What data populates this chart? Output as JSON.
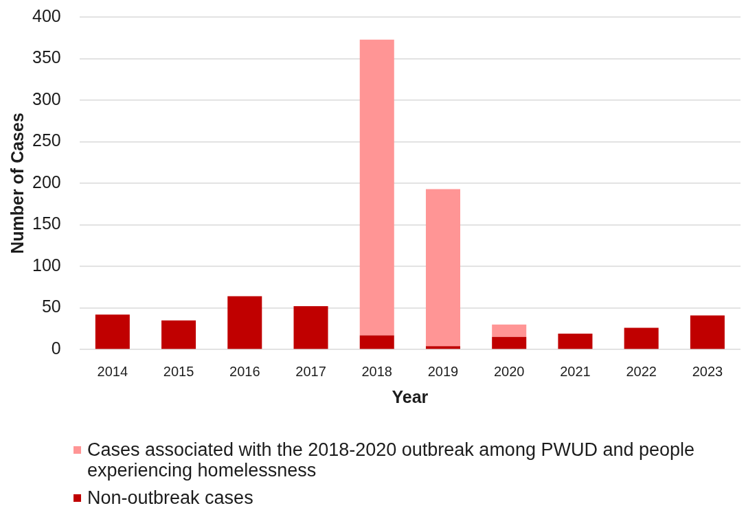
{
  "chart_data": {
    "type": "bar",
    "stacked": true,
    "xlabel": "Year",
    "ylabel": "Number of Cases",
    "categories": [
      "2014",
      "2015",
      "2016",
      "2017",
      "2018",
      "2019",
      "2020",
      "2021",
      "2022",
      "2023"
    ],
    "series": [
      {
        "name": "Non-outbreak cases",
        "color": "#c00000",
        "values": [
          42,
          35,
          64,
          52,
          17,
          4,
          15,
          19,
          26,
          41
        ]
      },
      {
        "name": "Cases associated with the 2018-2020 outbreak among PWUD and people experiencing homelessness",
        "color": "#ff9595",
        "values": [
          null,
          null,
          null,
          null,
          356,
          189,
          15,
          null,
          null,
          null
        ]
      }
    ],
    "ylim": [
      0,
      400
    ],
    "yticks": [
      0,
      50,
      100,
      150,
      200,
      250,
      300,
      350,
      400
    ],
    "grid": "y",
    "legend": "bottom"
  }
}
